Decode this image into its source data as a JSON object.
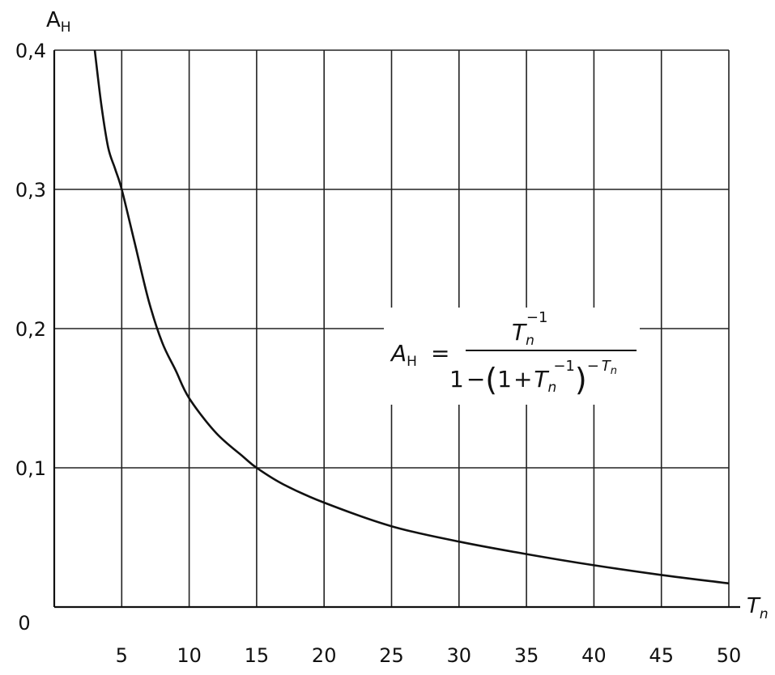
{
  "chart_data": {
    "type": "line",
    "y_axis_label_main": "A",
    "y_axis_label_sub": "Н",
    "x_axis_label_main": "T",
    "x_axis_label_sub": "n",
    "origin_label": "0",
    "xlim": [
      0,
      50
    ],
    "ylim": [
      0,
      0.4
    ],
    "x_ticks": [
      5,
      10,
      15,
      20,
      25,
      30,
      35,
      40,
      45,
      50
    ],
    "x_tick_labels": [
      "5",
      "10",
      "15",
      "20",
      "25",
      "30",
      "35",
      "40",
      "45",
      "50"
    ],
    "y_ticks": [
      0.1,
      0.2,
      0.3,
      0.4
    ],
    "y_tick_labels": [
      "0,1",
      "0,2",
      "0,3",
      "0,4"
    ],
    "grid": true,
    "series": [
      {
        "x": [
          3,
          3.5,
          4,
          4.5,
          5,
          6,
          7,
          8,
          9,
          10,
          12,
          14,
          15,
          17,
          20,
          25,
          30,
          35,
          40,
          45,
          50
        ],
        "y": [
          0.4,
          0.36,
          0.33,
          0.315,
          0.3,
          0.26,
          0.22,
          0.19,
          0.17,
          0.15,
          0.125,
          0.108,
          0.1,
          0.088,
          0.075,
          0.058,
          0.047,
          0.038,
          0.03,
          0.023,
          0.017
        ]
      }
    ],
    "annotation": {
      "lhs_main": "A",
      "lhs_sub": "Н",
      "equals": "=",
      "num_main": "T",
      "num_sub": "n",
      "num_sup": "−1",
      "den_one": "1",
      "den_minus": "−",
      "den_lparen": "(",
      "den_inner_one": "1",
      "den_plus": "+",
      "den_inner_main": "T",
      "den_inner_sub": "n",
      "den_inner_sup": "−1",
      "den_rparen": ")",
      "den_outer_sup_minus": "−",
      "den_outer_sup_main": "T",
      "den_outer_sup_sub": "n"
    }
  }
}
